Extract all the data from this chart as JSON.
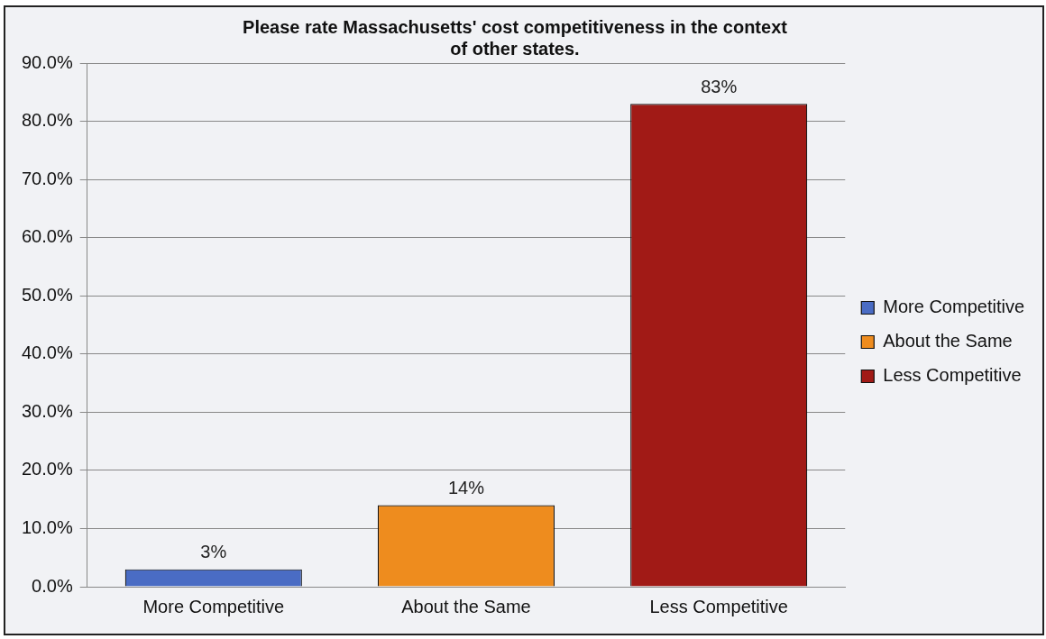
{
  "chart_data": {
    "type": "bar",
    "title": "Please rate Massachusetts' cost competitiveness in the context of other states.",
    "categories": [
      "More Competitive",
      "About the Same",
      "Less Competitive"
    ],
    "series": [
      {
        "name": "More Competitive",
        "color": "#4a6cc4",
        "values": [
          3,
          null,
          null
        ],
        "value_labels": [
          "3%",
          null,
          null
        ]
      },
      {
        "name": "About the Same",
        "color": "#ee8c1e",
        "values": [
          null,
          14,
          null
        ],
        "value_labels": [
          null,
          "14%",
          null
        ]
      },
      {
        "name": "Less Competitive",
        "color": "#a11a16",
        "values": [
          null,
          null,
          83
        ],
        "value_labels": [
          null,
          null,
          "83%"
        ]
      }
    ],
    "ylim": [
      0,
      90
    ],
    "yticks": [
      {
        "value": 0,
        "label": "0.0%"
      },
      {
        "value": 10,
        "label": "10.0%"
      },
      {
        "value": 20,
        "label": "20.0%"
      },
      {
        "value": 30,
        "label": "30.0%"
      },
      {
        "value": 40,
        "label": "40.0%"
      },
      {
        "value": 50,
        "label": "50.0%"
      },
      {
        "value": 60,
        "label": "60.0%"
      },
      {
        "value": 70,
        "label": "70.0%"
      },
      {
        "value": 80,
        "label": "80.0%"
      },
      {
        "value": 90,
        "label": "90.0%"
      }
    ],
    "grid": "y",
    "legend": "right"
  }
}
